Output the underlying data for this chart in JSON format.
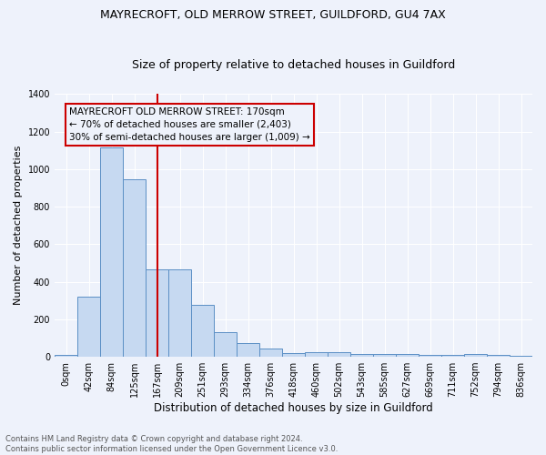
{
  "title1": "MAYRECROFT, OLD MERROW STREET, GUILDFORD, GU4 7AX",
  "title2": "Size of property relative to detached houses in Guildford",
  "xlabel": "Distribution of detached houses by size in Guildford",
  "ylabel": "Number of detached properties",
  "footer1": "Contains HM Land Registry data © Crown copyright and database right 2024.",
  "footer2": "Contains public sector information licensed under the Open Government Licence v3.0.",
  "annotation_line1": "MAYRECROFT OLD MERROW STREET: 170sqm",
  "annotation_line2": "← 70% of detached houses are smaller (2,403)",
  "annotation_line3": "30% of semi-detached houses are larger (1,009) →",
  "bar_values": [
    10,
    320,
    1115,
    945,
    465,
    465,
    275,
    130,
    75,
    45,
    20,
    25,
    25,
    15,
    15,
    15,
    10,
    10,
    15,
    10,
    5
  ],
  "x_labels": [
    "0sqm",
    "42sqm",
    "84sqm",
    "125sqm",
    "167sqm",
    "209sqm",
    "251sqm",
    "293sqm",
    "334sqm",
    "376sqm",
    "418sqm",
    "460sqm",
    "502sqm",
    "543sqm",
    "585sqm",
    "627sqm",
    "669sqm",
    "711sqm",
    "752sqm",
    "794sqm",
    "836sqm"
  ],
  "bar_color": "#c6d9f1",
  "bar_edge_color": "#5b8fc5",
  "vline_color": "#cc0000",
  "ylim": [
    0,
    1400
  ],
  "yticks": [
    0,
    200,
    400,
    600,
    800,
    1000,
    1200,
    1400
  ],
  "annotation_box_color": "#cc0000",
  "bg_color": "#eef2fb",
  "grid_color": "#ffffff",
  "title1_fontsize": 9,
  "title2_fontsize": 9,
  "ylabel_fontsize": 8,
  "xlabel_fontsize": 8.5,
  "tick_fontsize": 7,
  "footer_fontsize": 6,
  "ann_fontsize": 7.5
}
